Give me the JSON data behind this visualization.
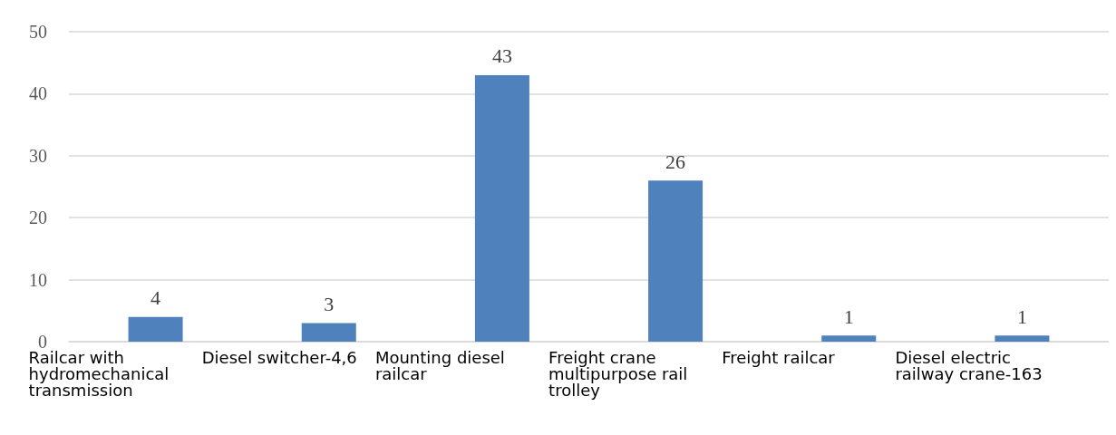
{
  "chart_data": {
    "type": "bar",
    "categories": [
      "Railcar with hydromechanical transmission",
      "Diesel switcher-4,6",
      "Mounting diesel railcar",
      "Freight crane multipurpose rail trolley",
      "Freight railcar",
      "Diesel electric railway crane-163"
    ],
    "values": [
      4,
      3,
      43,
      26,
      1,
      1
    ],
    "color": "#4f81bd",
    "ylim": [
      0,
      50
    ],
    "yticks": [
      0,
      10,
      20,
      30,
      40,
      50
    ],
    "grid": "y",
    "data_labels": true
  }
}
